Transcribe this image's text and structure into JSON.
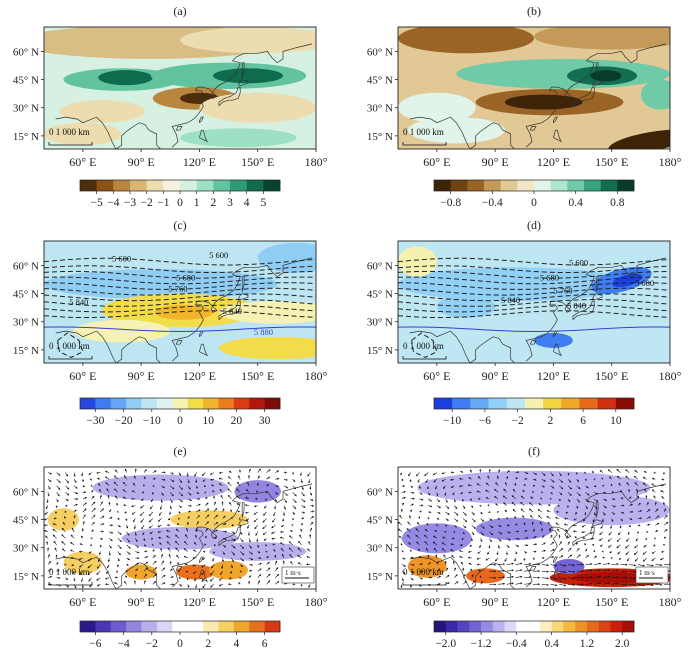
{
  "chart_data": [
    {
      "type": "heatmap",
      "panel": "(a)",
      "lat_ticks": [
        "60° N",
        "45° N",
        "30° N",
        "15° N"
      ],
      "lon_ticks": [
        "60° E",
        "90° E",
        "120° E",
        "150° E",
        "180°"
      ],
      "scale_label": "0 1 000 km",
      "colorbar_ticks": [
        "−5",
        "−4",
        "−3",
        "−2",
        "−1",
        "0",
        "1",
        "2",
        "3",
        "4",
        "5"
      ],
      "colorbar_colors": [
        "#4d2e0b",
        "#8c5117",
        "#b8863e",
        "#d8b574",
        "#eddcb0",
        "#f7f2e0",
        "#d6f1e2",
        "#9ee0c4",
        "#62c39f",
        "#2e9b78",
        "#0f6b4e",
        "#07442f"
      ]
    },
    {
      "type": "heatmap",
      "panel": "(b)",
      "lat_ticks": [
        "60° N",
        "45° N",
        "30° N",
        "15° N"
      ],
      "lon_ticks": [
        "60° E",
        "90° E",
        "120° E",
        "150° E",
        "180°"
      ],
      "scale_label": "0 1 000 km",
      "colorbar_ticks": [
        "−0.8",
        "−0.4",
        "0",
        "0.4",
        "0.8"
      ],
      "colorbar_colors": [
        "#3d2407",
        "#6e4212",
        "#9a6426",
        "#c49a5a",
        "#e2c894",
        "#f3e6c4",
        "#e1f4ea",
        "#aee6cd",
        "#6fcaa8",
        "#36a27e",
        "#136e51",
        "#063c29"
      ]
    },
    {
      "type": "heatmap",
      "panel": "(c)",
      "lat_ticks": [
        "60° N",
        "45° N",
        "30° N",
        "15° N"
      ],
      "lon_ticks": [
        "60° E",
        "90° E",
        "120° E",
        "150° E",
        "180°"
      ],
      "scale_label": "0 1 000 km",
      "contour_labels": [
        "5 600",
        "5 600",
        "5 680",
        "5 760",
        "5 840",
        "5 840",
        "5 880"
      ],
      "colorbar_ticks": [
        "−30",
        "−20",
        "−10",
        "0",
        "10",
        "20",
        "30"
      ],
      "colorbar_colors": [
        "#2448e0",
        "#3e7cf0",
        "#62a6f5",
        "#8fcdf5",
        "#bde6f2",
        "#dff3f5",
        "#f6f2b3",
        "#f2dc4a",
        "#f0b52a",
        "#ec7c1d",
        "#dc3a14",
        "#b3160c",
        "#7d0c08"
      ]
    },
    {
      "type": "heatmap",
      "panel": "(d)",
      "lat_ticks": [
        "60° N",
        "45° N",
        "30° N",
        "15° N"
      ],
      "lon_ticks": [
        "60° E",
        "90° E",
        "120° E",
        "150° E",
        "180°"
      ],
      "scale_label": "0 1 000 km",
      "contour_labels": [
        "5 600",
        "5 680",
        "5 680",
        "5 760",
        "5 840",
        "5 840"
      ],
      "colorbar_ticks": [
        "−10",
        "−6",
        "−2",
        "2",
        "6",
        "10"
      ],
      "colorbar_colors": [
        "#1c3fe0",
        "#3f7df2",
        "#66aaf6",
        "#92d0f6",
        "#bfe7f3",
        "#f5f1b0",
        "#f2d440",
        "#f0a826",
        "#ea6a1b",
        "#d42e12",
        "#8c0d08"
      ]
    },
    {
      "type": "heatmap",
      "panel": "(e)",
      "lat_ticks": [
        "60° N",
        "45° N",
        "30° N",
        "15° N"
      ],
      "lon_ticks": [
        "60° E",
        "90° E",
        "120° E",
        "150° E",
        "180°"
      ],
      "scale_label": "0 1 000 km",
      "vector_label": "1 m·s",
      "colorbar_ticks": [
        "−6",
        "−4",
        "−2",
        "0",
        "2",
        "4",
        "6"
      ],
      "colorbar_colors": [
        "#2c1a8c",
        "#4b36b5",
        "#6d5bd0",
        "#9384e0",
        "#b8aeec",
        "#dcd6f6",
        "#ffffff",
        "#ffffff",
        "#fbeab0",
        "#f5cf62",
        "#f0a52c",
        "#e8711d",
        "#d63a12"
      ]
    },
    {
      "type": "heatmap",
      "panel": "(f)",
      "lat_ticks": [
        "60° N",
        "45° N",
        "30° N",
        "15° N"
      ],
      "lon_ticks": [
        "60° E",
        "90° E",
        "120° E",
        "150° E",
        "180°"
      ],
      "scale_label": "0 1 000 km",
      "vector_label": "1 m·s",
      "colorbar_ticks": [
        "−2.0",
        "−1.2",
        "−0.4",
        "0.4",
        "1.2",
        "2.0"
      ],
      "colorbar_colors": [
        "#241480",
        "#3a2aa6",
        "#5443c4",
        "#7363d6",
        "#958ae4",
        "#b9b2ef",
        "#ddd9f8",
        "#ffffff",
        "#ffffff",
        "#fdeec0",
        "#f8d878",
        "#f4b93e",
        "#f09326",
        "#e8691b",
        "#dc4214",
        "#c8200c",
        "#a80e08"
      ]
    }
  ]
}
